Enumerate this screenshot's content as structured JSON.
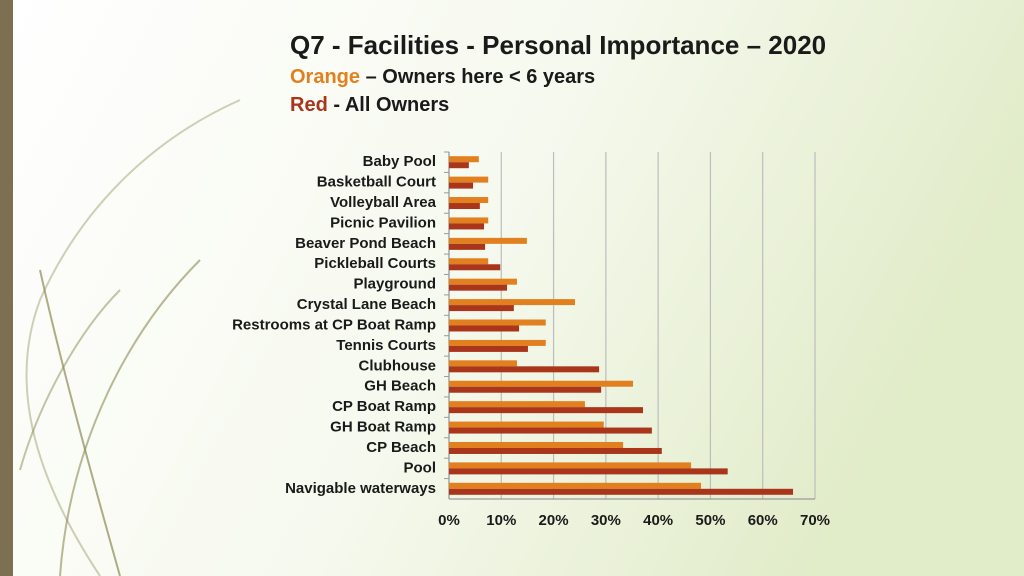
{
  "chart_data": {
    "type": "hbar",
    "title": "Q7 - Facilities - Personal Importance – 2020",
    "categories": [
      "Baby Pool",
      "Basketball Court",
      "Volleyball Area",
      "Picnic Pavilion",
      "Beaver Pond Beach",
      "Pickleball Courts",
      "Playground",
      "Crystal Lane Beach",
      "Restrooms at CP Boat Ramp",
      "Tennis Courts",
      "Clubhouse",
      "GH Beach",
      "CP Boat Ramp",
      "GH Boat Ramp",
      "CP Beach",
      "Pool",
      "Navigable waterways"
    ],
    "series": [
      {
        "key": "Orange",
        "name": "– Owners here < 6 years",
        "color": "#e2801f",
        "values": [
          5.7,
          7.5,
          7.5,
          7.5,
          14.9,
          7.5,
          13.0,
          24.1,
          18.5,
          18.5,
          13.0,
          35.2,
          26.0,
          29.6,
          33.3,
          46.3,
          48.2
        ]
      },
      {
        "key": "Red",
        "name": "- All Owners",
        "color": "#a9361b",
        "values": [
          3.8,
          4.6,
          5.9,
          6.7,
          6.9,
          9.8,
          11.1,
          12.4,
          13.4,
          15.1,
          28.7,
          29.1,
          37.1,
          38.8,
          40.7,
          53.3,
          65.8
        ]
      }
    ],
    "xlim": [
      0,
      70
    ],
    "xticks": [
      {
        "value": 0,
        "label": "0%"
      },
      {
        "value": 10,
        "label": "10%"
      },
      {
        "value": 20,
        "label": "20%"
      },
      {
        "value": 30,
        "label": "30%"
      },
      {
        "value": 40,
        "label": "40%"
      },
      {
        "value": 50,
        "label": "50%"
      },
      {
        "value": 60,
        "label": "60%"
      },
      {
        "value": 70,
        "label": "70%"
      }
    ],
    "grid": true
  }
}
